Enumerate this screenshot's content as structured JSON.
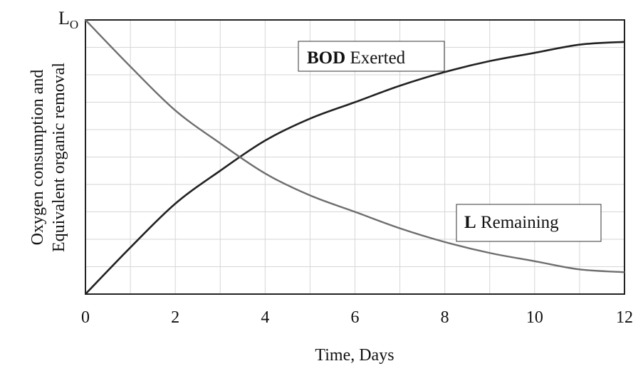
{
  "chart_data": {
    "type": "line",
    "title": "",
    "xlabel": "Time, Days",
    "ylabel": [
      "Oxygen consumption and",
      "Equivalent organic removal"
    ],
    "xlim": [
      0,
      12
    ],
    "ylim": [
      0,
      1
    ],
    "x_ticks": [
      "0",
      "2",
      "4",
      "6",
      "8",
      "10",
      "12"
    ],
    "y_top_label": {
      "main": "L",
      "sub": "O"
    },
    "grid": true,
    "x": [
      0,
      1,
      2,
      3,
      4,
      5,
      6,
      7,
      8,
      9,
      10,
      11,
      12
    ],
    "series": [
      {
        "name": "BOD Exerted",
        "label_bold": "BOD",
        "label_rest": " Exerted",
        "values": [
          0,
          0.17,
          0.33,
          0.45,
          0.56,
          0.64,
          0.7,
          0.76,
          0.81,
          0.85,
          0.88,
          0.91,
          0.92
        ]
      },
      {
        "name": "L Remaining",
        "label_bold": "L",
        "label_rest": " Remaining",
        "values": [
          1,
          0.83,
          0.67,
          0.55,
          0.44,
          0.36,
          0.3,
          0.24,
          0.19,
          0.15,
          0.12,
          0.09,
          0.08
        ]
      }
    ],
    "colors": {
      "bod": "#222222",
      "remaining": "#6e6e6e",
      "grid": "#d6d6d6",
      "axis": "#222222"
    }
  }
}
